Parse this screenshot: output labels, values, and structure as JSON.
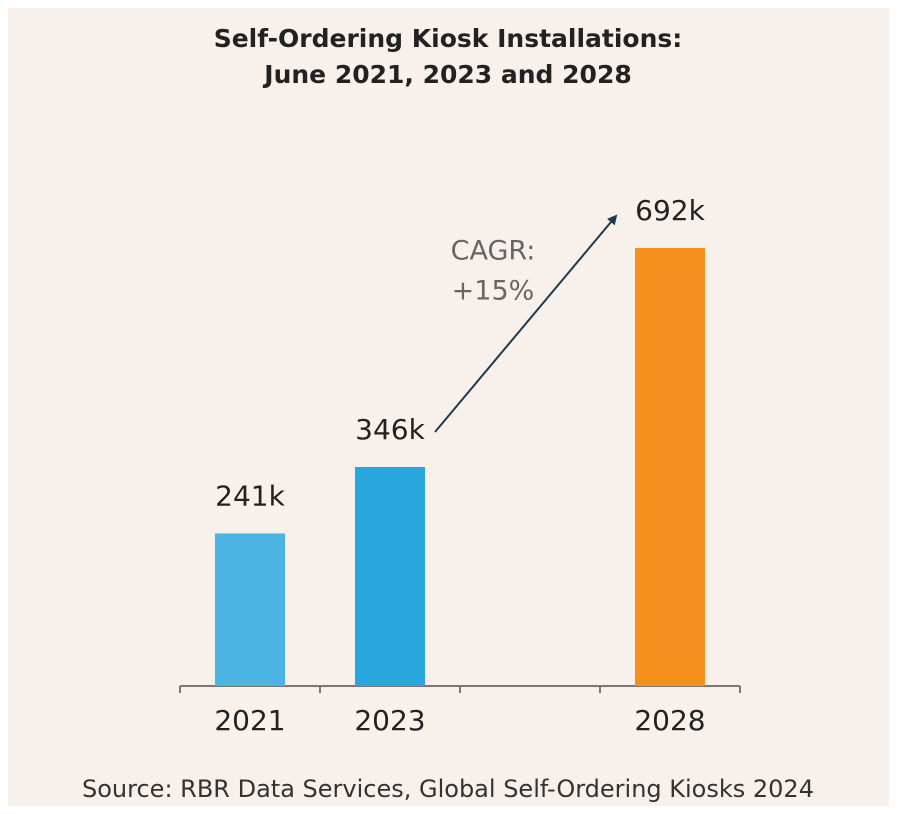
{
  "chart_data": {
    "type": "bar",
    "title": [
      "Self-Ordering Kiosk Installations:",
      "June 2021, 2023 and 2028"
    ],
    "categories": [
      "2021",
      "2023",
      null,
      "2028"
    ],
    "values": [
      241,
      346,
      null,
      692
    ],
    "value_labels": [
      "241k",
      "346k",
      null,
      "692k"
    ],
    "colors": [
      "#4cb4e2",
      "#2aa6df",
      null,
      "#f5901f"
    ],
    "annotation": [
      "CAGR:",
      "+15%"
    ],
    "source": "Source: RBR Data Services, Global Self-Ordering Kiosks 2024"
  }
}
